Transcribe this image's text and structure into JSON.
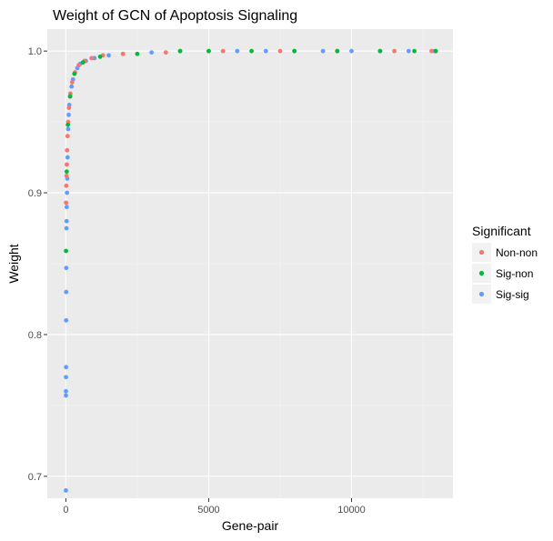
{
  "chart_data": {
    "type": "scatter",
    "title": "Weight of GCN of Apoptosis Signaling",
    "xlabel": "Gene-pair",
    "ylabel": "Weight",
    "xlim": [
      -650,
      13550
    ],
    "ylim": [
      0.6845,
      1.0155
    ],
    "xticks": [
      0,
      5000,
      10000
    ],
    "xtick_labels": [
      "0",
      "5000",
      "10000"
    ],
    "yticks": [
      0.7,
      0.8,
      0.9,
      1.0
    ],
    "ytick_labels": [
      "0.7",
      "0.8",
      "0.9",
      "1.0"
    ],
    "grid": true,
    "legend": {
      "title": "Significant",
      "position": "right",
      "entries": [
        "Non-non",
        "Sig-non",
        "Sig-sig"
      ]
    },
    "colors": {
      "Non-non": "#f8766d",
      "Sig-non": "#00ba38",
      "Sig-sig": "#619cff",
      "panel": "#ebebeb",
      "grid_major": "#ffffff",
      "grid_minor": "#f4f4f4"
    },
    "series": [
      {
        "name": "Sig-sig",
        "x": [
          1,
          2,
          3,
          5,
          8,
          10,
          12,
          15,
          20,
          25,
          30,
          40,
          50,
          60,
          80,
          100,
          120,
          150,
          200,
          250,
          300,
          400,
          500,
          700,
          1000,
          1500,
          2000,
          3000,
          4000,
          5000,
          6000,
          7000,
          8000,
          9000,
          10000,
          11000,
          12000,
          12900
        ],
        "y": [
          0.69,
          0.757,
          0.76,
          0.77,
          0.777,
          0.81,
          0.83,
          0.847,
          0.875,
          0.88,
          0.89,
          0.9,
          0.91,
          0.925,
          0.945,
          0.955,
          0.962,
          0.968,
          0.975,
          0.98,
          0.984,
          0.988,
          0.991,
          0.993,
          0.995,
          0.997,
          0.998,
          0.999,
          1.0,
          1.0,
          1.0,
          1.0,
          1.0,
          1.0,
          1.0,
          1.0,
          1.0,
          1.0
        ]
      },
      {
        "name": "Non-non",
        "x": [
          8,
          15,
          25,
          35,
          45,
          60,
          80,
          110,
          160,
          220,
          320,
          450,
          650,
          900,
          1300,
          2000,
          3500,
          5500,
          7500,
          9500,
          11500,
          12800
        ],
        "y": [
          0.893,
          0.905,
          0.912,
          0.92,
          0.93,
          0.94,
          0.95,
          0.96,
          0.97,
          0.978,
          0.985,
          0.99,
          0.993,
          0.995,
          0.997,
          0.998,
          0.999,
          1.0,
          1.0,
          1.0,
          1.0,
          1.0
        ]
      },
      {
        "name": "Sig-non",
        "x": [
          5,
          30,
          70,
          150,
          300,
          600,
          1200,
          2500,
          4000,
          5000,
          6500,
          8000,
          9500,
          11000,
          12200,
          12950
        ],
        "y": [
          0.859,
          0.915,
          0.948,
          0.968,
          0.984,
          0.992,
          0.996,
          0.998,
          1.0,
          1.0,
          1.0,
          1.0,
          1.0,
          1.0,
          1.0,
          1.0
        ]
      }
    ]
  }
}
